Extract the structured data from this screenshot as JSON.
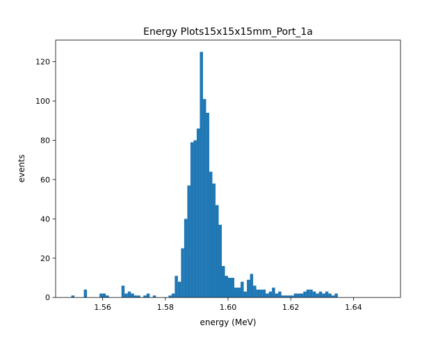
{
  "chart_data": {
    "type": "bar",
    "title": "Energy Plots15x15x15mm_Port_1a",
    "xlabel": "energy (MeV)",
    "ylabel": "events",
    "xlim": [
      1.545,
      1.655
    ],
    "ylim": [
      0,
      131
    ],
    "xticks": [
      1.56,
      1.58,
      1.6,
      1.62,
      1.64
    ],
    "xtick_labels": [
      "1.56",
      "1.58",
      "1.60",
      "1.62",
      "1.64"
    ],
    "yticks": [
      0,
      20,
      40,
      60,
      80,
      100,
      120
    ],
    "ytick_labels": [
      "0",
      "20",
      "40",
      "60",
      "80",
      "100",
      "120"
    ],
    "bin_start": 1.55,
    "bin_width": 0.001,
    "values": [
      1,
      0,
      0,
      0,
      4,
      0,
      0,
      0,
      0,
      2,
      2,
      1,
      0,
      0,
      0,
      0,
      6,
      2,
      3,
      2,
      1,
      1,
      0,
      1,
      2,
      0,
      1,
      0,
      0,
      0,
      0,
      1,
      2,
      11,
      8,
      25,
      40,
      57,
      79,
      80,
      86,
      125,
      101,
      94,
      64,
      58,
      47,
      37,
      16,
      11,
      10,
      10,
      5,
      5,
      8,
      3,
      9,
      12,
      6,
      4,
      4,
      4,
      2,
      3,
      5,
      2,
      3,
      1,
      1,
      1,
      1,
      2,
      2,
      2,
      3,
      4,
      4,
      3,
      2,
      3,
      2,
      3,
      2,
      1,
      2
    ],
    "bar_color": "#1f77b4",
    "grid": false,
    "legend": "none"
  }
}
